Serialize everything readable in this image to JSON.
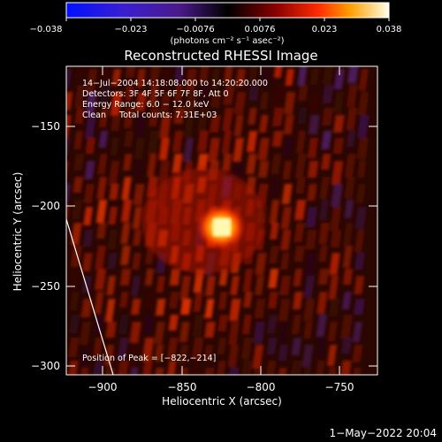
{
  "colorbar": {
    "tick_labels": [
      "−0.038",
      "−0.023",
      "−0.0076",
      "0.0076",
      "0.023",
      "0.038"
    ],
    "unit_label": "(photons cm⁻² s⁻¹ asec⁻²)"
  },
  "title": "Reconstructed RHESSI Image",
  "annotations": [
    "14−Jul−2004 14:18:08.000 to 14:20:20.000",
    "Detectors: 3F 4F 5F 6F 7F 8F, Att 0",
    "Energy Range: 6.0 − 12.0 keV",
    "Clean     Total counts: 7.31E+03"
  ],
  "peak_label": "Position of Peak = [−822,−214]",
  "x_axis": {
    "label": "Heliocentric X (arcsec)",
    "ticks": [
      "−900",
      "−850",
      "−800",
      "−750"
    ]
  },
  "y_axis": {
    "label": "Heliocentric Y (arcsec)",
    "ticks": [
      "−150",
      "−200",
      "−250",
      "−300"
    ]
  },
  "timestamp": "1−May−2022 20:04"
}
